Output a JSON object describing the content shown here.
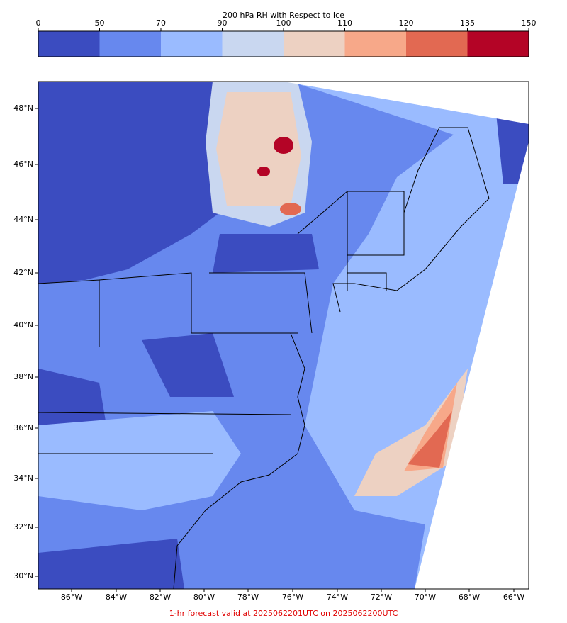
{
  "colorbar": {
    "title": "200 hPa RH with Respect to Ice",
    "ticks": [
      0,
      50,
      70,
      90,
      100,
      110,
      120,
      135,
      150
    ],
    "colors": [
      "#3b4cc0",
      "#6788ee",
      "#9abbff",
      "#c9d7f0",
      "#edd1c2",
      "#f7a889",
      "#e26952",
      "#b40426"
    ]
  },
  "map": {
    "lat_labels": [
      "48°N",
      "46°N",
      "44°N",
      "42°N",
      "40°N",
      "38°N",
      "36°N",
      "34°N",
      "32°N",
      "30°N"
    ],
    "lon_labels": [
      "86°W",
      "84°W",
      "82°W",
      "80°W",
      "78°W",
      "76°W",
      "74°W",
      "72°W",
      "70°W",
      "68°W",
      "66°W"
    ]
  },
  "footer": "1-hr forecast valid at 2025062201UTC on 2025062200UTC"
}
